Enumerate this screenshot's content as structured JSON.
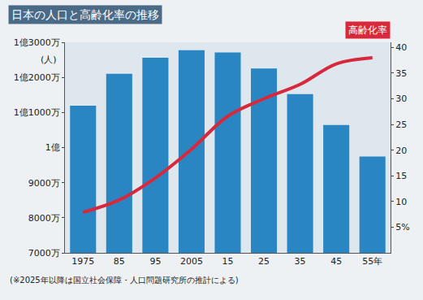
{
  "chart_data": {
    "type": "bar",
    "title": "日本の人口と高齢化率の推移",
    "y_label": "(人)",
    "note": "(※2025年以降は国立社会保障・人口問題研究所の推計による)",
    "categories": [
      "1975",
      "85",
      "95",
      "2005",
      "15",
      "25",
      "35",
      "45",
      "55年"
    ],
    "series": [
      {
        "type": "bar",
        "color": "#2a86c2",
        "values": [
          111940000,
          121050000,
          125570000,
          127770000,
          127090000,
          122540000,
          115220000,
          106420000,
          97440000
        ]
      },
      {
        "name": "高齢化率",
        "type": "line",
        "axis": "y2",
        "color": "#d8283c",
        "line_style": "solid",
        "values": [
          7.9,
          10.3,
          14.6,
          20.2,
          26.6,
          30.0,
          32.8,
          36.8,
          38.0
        ]
      }
    ],
    "ylim": [
      70000000,
      130000000
    ],
    "yticks": [
      {
        "value": 70000000,
        "label": "7000万"
      },
      {
        "value": 80000000,
        "label": "8000万"
      },
      {
        "value": 90000000,
        "label": "9000万"
      },
      {
        "value": 100000000,
        "label": "1億"
      },
      {
        "value": 110000000,
        "label": "1億1000万"
      },
      {
        "value": 120000000,
        "label": "1億2000万"
      },
      {
        "value": 130000000,
        "label": "1億3000万"
      }
    ],
    "y2lim": [
      0,
      41
    ],
    "y2ticks": [
      {
        "value": 5,
        "label": "5%"
      },
      10,
      15,
      20,
      25,
      30,
      35,
      40
    ],
    "grid": false
  }
}
